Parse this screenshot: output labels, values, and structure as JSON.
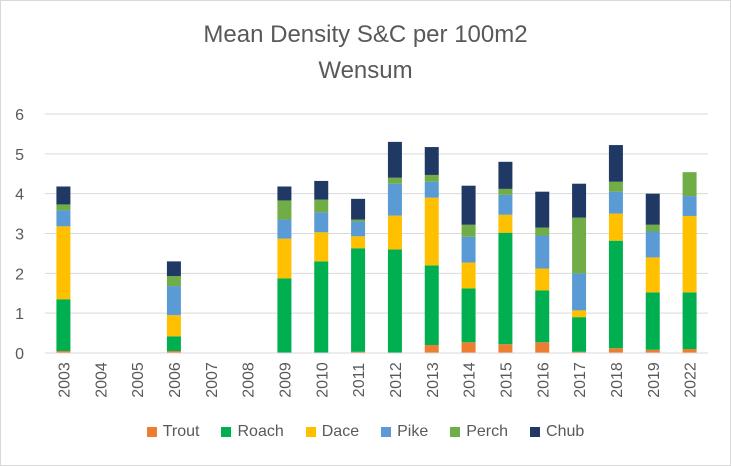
{
  "chart_data": {
    "type": "bar",
    "stacked": true,
    "title": "Mean Density S&C per 100m2",
    "subtitle": "Wensum",
    "categories": [
      "2003",
      "2004",
      "2005",
      "2006",
      "2007",
      "2008",
      "2009",
      "2010",
      "2011",
      "2012",
      "2013",
      "2014",
      "2015",
      "2016",
      "2017",
      "2018",
      "2019",
      "2022"
    ],
    "ylim": [
      0,
      6
    ],
    "yticks": [
      0,
      1,
      2,
      3,
      4,
      5,
      6
    ],
    "grid": true,
    "legend": "bottom",
    "series": [
      {
        "name": "Trout",
        "color": "#ED7D31",
        "values": [
          0.05,
          0,
          0,
          0.05,
          0,
          0,
          0,
          0,
          0.03,
          0,
          0.2,
          0.27,
          0.22,
          0.27,
          0.03,
          0.12,
          0.08,
          0.1
        ]
      },
      {
        "name": "Roach",
        "color": "#00B050",
        "values": [
          1.3,
          0,
          0,
          0.37,
          0,
          0,
          1.87,
          2.3,
          2.6,
          2.6,
          2.0,
          1.35,
          2.8,
          1.3,
          0.87,
          2.7,
          1.44,
          1.42
        ]
      },
      {
        "name": "Dace",
        "color": "#FFC000",
        "values": [
          1.83,
          0,
          0,
          0.53,
          0,
          0,
          1.0,
          0.73,
          0.3,
          0.85,
          1.7,
          0.65,
          0.45,
          0.55,
          0.17,
          0.68,
          0.88,
          1.92
        ]
      },
      {
        "name": "Pike",
        "color": "#5B9BD5",
        "values": [
          0.4,
          0,
          0,
          0.73,
          0,
          0,
          0.48,
          0.5,
          0.37,
          0.8,
          0.4,
          0.65,
          0.5,
          0.83,
          0.93,
          0.55,
          0.65,
          0.5
        ]
      },
      {
        "name": "Perch",
        "color": "#70AD47",
        "values": [
          0.15,
          0,
          0,
          0.25,
          0,
          0,
          0.48,
          0.32,
          0.05,
          0.15,
          0.17,
          0.3,
          0.15,
          0.2,
          1.4,
          0.25,
          0.17,
          0.6
        ]
      },
      {
        "name": "Chub",
        "color": "#1F3864",
        "values": [
          0.45,
          0,
          0,
          0.37,
          0,
          0,
          0.35,
          0.47,
          0.52,
          0.9,
          0.7,
          0.98,
          0.68,
          0.9,
          0.85,
          0.92,
          0.78,
          0
        ]
      }
    ]
  }
}
